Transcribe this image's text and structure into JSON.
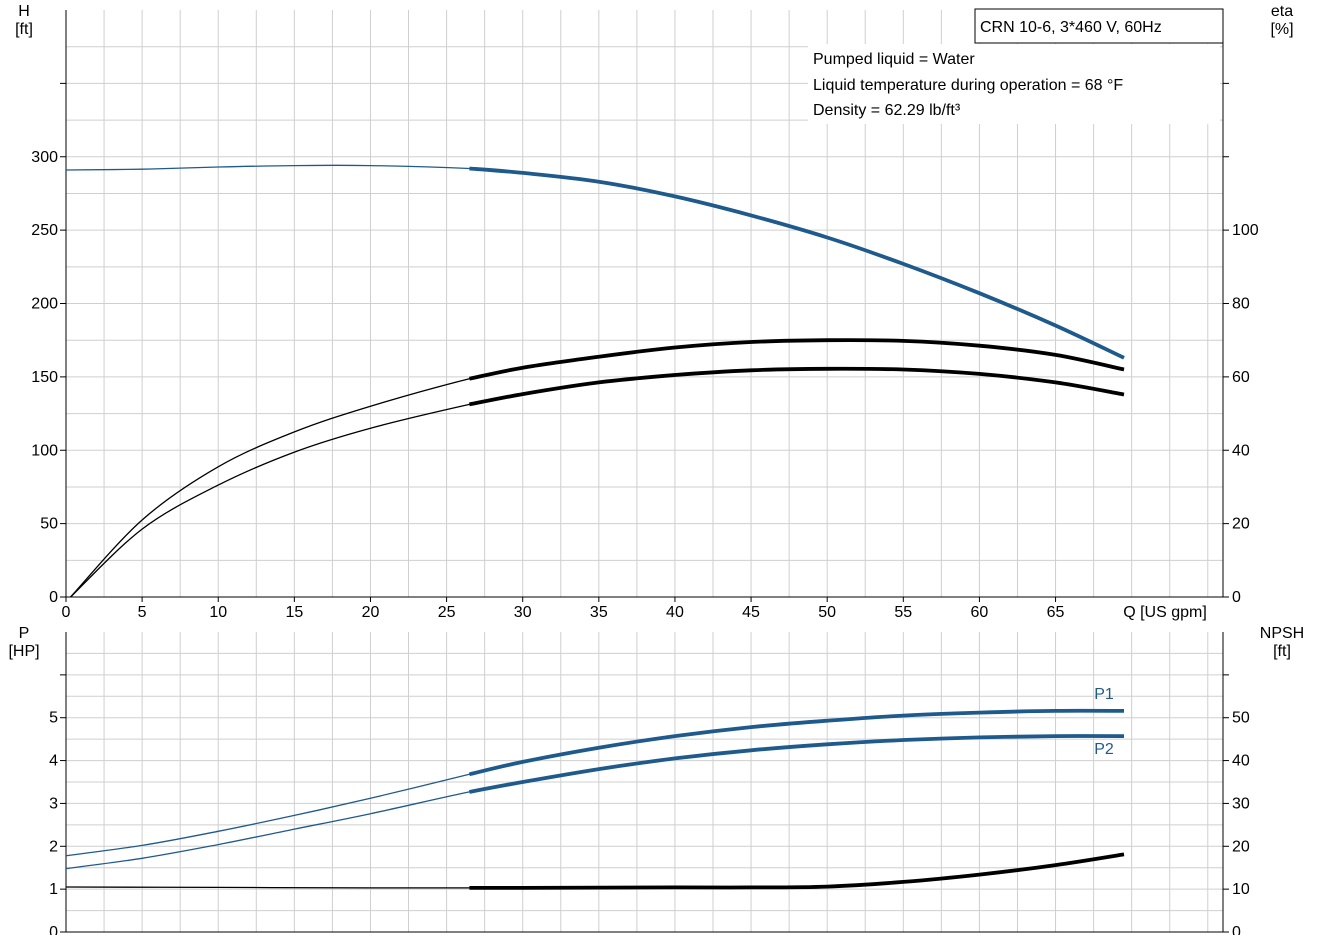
{
  "title": "CRN 10-6, 3*460 V, 60Hz",
  "info": [
    "Pumped liquid = Water",
    "Liquid temperature during operation = 68 °F",
    "Density = 62.29 lb/ft³"
  ],
  "colors": {
    "blue": "#1f5a8c",
    "black": "#000000",
    "grid": "#cfcfcf"
  },
  "chart_data": [
    {
      "type": "line",
      "panel": "top",
      "x_tick_labels": [
        "0",
        "5",
        "10",
        "15",
        "20",
        "25",
        "30",
        "35",
        "40",
        "45",
        "50",
        "55",
        "60",
        "65"
      ],
      "xlabel": "Q [US gpm]",
      "xlim": [
        0,
        76
      ],
      "y_left": {
        "label_line1": "H",
        "label_line2": "[ft]",
        "ylim": [
          0,
          400
        ],
        "tick_labels": [
          "0",
          "50",
          "100",
          "150",
          "200",
          "250",
          "300"
        ]
      },
      "y_right": {
        "label_line1": "eta",
        "label_line2": "[%]",
        "ylim": [
          0,
          160
        ],
        "tick_labels": [
          "0",
          "20",
          "40",
          "60",
          "80",
          "100"
        ]
      },
      "grid": true,
      "series": [
        {
          "axis": "left",
          "color": "#1f5a8c",
          "x": [
            0,
            5,
            10,
            15,
            20,
            26.5,
            30,
            35,
            40,
            45,
            50,
            55,
            60,
            65,
            69.5
          ],
          "y": [
            291,
            291.5,
            293,
            294,
            294,
            292,
            289,
            283,
            273,
            260,
            245,
            227,
            207,
            185,
            163
          ]
        },
        {
          "axis": "right",
          "color": "#000000",
          "x": [
            0.3,
            5,
            10,
            15,
            20,
            26.5,
            30,
            35,
            40,
            45,
            50,
            55,
            60,
            65,
            69.5
          ],
          "y": [
            0,
            21,
            35.5,
            45,
            52,
            59.5,
            62.5,
            65.5,
            68,
            69.5,
            70,
            69.8,
            68.5,
            66,
            62
          ]
        },
        {
          "axis": "right",
          "color": "#000000",
          "x": [
            0.3,
            5,
            10,
            15,
            20,
            26.5,
            30,
            35,
            40,
            45,
            50,
            55,
            60,
            65,
            69.5
          ],
          "y": [
            0,
            18.5,
            30.5,
            39.5,
            46,
            52.5,
            55.3,
            58.5,
            60.5,
            61.8,
            62.2,
            62,
            60.8,
            58.5,
            55.2
          ]
        }
      ]
    },
    {
      "type": "line",
      "panel": "bottom",
      "xlim": [
        0,
        76
      ],
      "y_left": {
        "label_line1": "P",
        "label_line2": "[HP]",
        "ylim": [
          0,
          7
        ],
        "tick_labels": [
          "0",
          "1",
          "2",
          "3",
          "4",
          "5"
        ]
      },
      "y_right": {
        "label_line1": "NPSH",
        "label_line2": "[ft]",
        "ylim": [
          0,
          70
        ],
        "tick_labels": [
          "0",
          "10",
          "20",
          "30",
          "40",
          "50"
        ]
      },
      "grid": true,
      "series": [
        {
          "name": "P1",
          "axis": "left",
          "color": "#1f5a8c",
          "x": [
            0,
            5,
            10,
            15,
            20,
            26.5,
            30,
            35,
            40,
            45,
            50,
            55,
            60,
            65,
            69.5
          ],
          "y": [
            1.78,
            2.02,
            2.35,
            2.72,
            3.12,
            3.68,
            3.97,
            4.3,
            4.57,
            4.78,
            4.93,
            5.05,
            5.12,
            5.16,
            5.16
          ]
        },
        {
          "name": "P2",
          "axis": "left",
          "color": "#1f5a8c",
          "x": [
            0,
            5,
            10,
            15,
            20,
            26.5,
            30,
            35,
            40,
            45,
            50,
            55,
            60,
            65,
            69.5
          ],
          "y": [
            1.48,
            1.72,
            2.04,
            2.4,
            2.76,
            3.27,
            3.5,
            3.8,
            4.05,
            4.24,
            4.38,
            4.48,
            4.54,
            4.57,
            4.57
          ]
        },
        {
          "axis": "right",
          "color": "#000000",
          "x": [
            0,
            10,
            20,
            26.5,
            30,
            40,
            45,
            50,
            55,
            60,
            65,
            69.5
          ],
          "y": [
            10.5,
            10.4,
            10.3,
            10.3,
            10.3,
            10.4,
            10.4,
            10.6,
            11.7,
            13.4,
            15.6,
            18.1
          ]
        }
      ]
    }
  ]
}
